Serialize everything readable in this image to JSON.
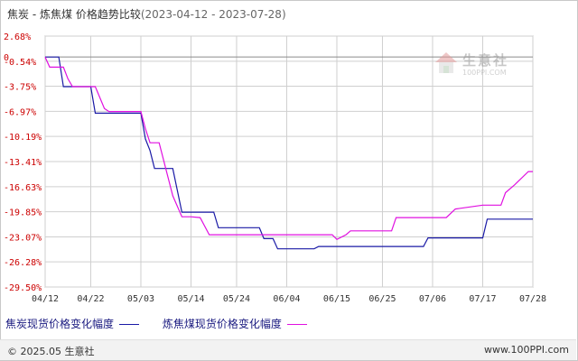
{
  "title": {
    "series_a": "焦炭",
    "sep": " - ",
    "series_b": "炼焦煤",
    "suffix": " 价格趋势比较",
    "range": "(2023-04-12 - 2023-07-28)"
  },
  "watermark": {
    "name": "生意社",
    "url": "100PPI.COM"
  },
  "footer": {
    "copyright": "© 2025.05 生意社",
    "site": "www.100PPI.com"
  },
  "colors": {
    "series_a": "#1a1aa6",
    "series_b": "#e010e0",
    "ytick": "#cc0000",
    "grid": "#cfcfcf"
  },
  "chart_data": {
    "type": "line",
    "title": "焦炭 - 炼焦煤 价格趋势比较(2023-04-12 - 2023-07-28)",
    "x_start": "2023-04-12",
    "x_end": "2023-07-28",
    "xlim": [
      "2023-04-12",
      "2023-07-28"
    ],
    "ylim": [
      -29.5,
      2.68
    ],
    "y_unit": "%",
    "y_ticks": [
      "2.68%",
      "0",
      "-0.54%",
      "-3.75%",
      "-6.97%",
      "-10.19%",
      "-13.41%",
      "-16.63%",
      "-19.85%",
      "-23.07%",
      "-26.28%",
      "-29.50%"
    ],
    "y_tick_values": [
      2.68,
      0,
      -0.54,
      -3.75,
      -6.97,
      -10.19,
      -13.41,
      -16.63,
      -19.85,
      -23.07,
      -26.28,
      -29.5
    ],
    "x_ticks": [
      "04/12",
      "04/22",
      "05/03",
      "05/14",
      "05/24",
      "06/04",
      "06/15",
      "06/25",
      "07/06",
      "07/17",
      "07/28"
    ],
    "x_tick_dates": [
      "2023-04-12",
      "2023-04-22",
      "2023-05-03",
      "2023-05-14",
      "2023-05-24",
      "2023-06-04",
      "2023-06-15",
      "2023-06-25",
      "2023-07-06",
      "2023-07-17",
      "2023-07-28"
    ],
    "grid": true,
    "legend_position": "bottom-left",
    "series": [
      {
        "name": "焦炭现货价格变化幅度",
        "color": "#1a1aa6",
        "points": [
          [
            "2023-04-12",
            0
          ],
          [
            "2023-04-15",
            0
          ],
          [
            "2023-04-16",
            -3.8
          ],
          [
            "2023-04-22",
            -3.8
          ],
          [
            "2023-04-23",
            -7.2
          ],
          [
            "2023-05-03",
            -7.2
          ],
          [
            "2023-05-04",
            -10.5
          ],
          [
            "2023-05-05",
            -12.0
          ],
          [
            "2023-05-06",
            -14.3
          ],
          [
            "2023-05-10",
            -14.3
          ],
          [
            "2023-05-12",
            -19.9
          ],
          [
            "2023-05-19",
            -19.9
          ],
          [
            "2023-05-20",
            -21.9
          ],
          [
            "2023-05-29",
            -21.9
          ],
          [
            "2023-05-30",
            -23.3
          ],
          [
            "2023-06-01",
            -23.3
          ],
          [
            "2023-06-02",
            -24.6
          ],
          [
            "2023-06-10",
            -24.6
          ],
          [
            "2023-06-11",
            -24.3
          ],
          [
            "2023-07-04",
            -24.3
          ],
          [
            "2023-07-05",
            -23.2
          ],
          [
            "2023-07-17",
            -23.2
          ],
          [
            "2023-07-18",
            -20.8
          ],
          [
            "2023-07-28",
            -20.8
          ]
        ]
      },
      {
        "name": "炼焦煤现货价格变化幅度",
        "color": "#e010e0",
        "points": [
          [
            "2023-04-12",
            0
          ],
          [
            "2023-04-13",
            -1.3
          ],
          [
            "2023-04-16",
            -1.3
          ],
          [
            "2023-04-17",
            -2.8
          ],
          [
            "2023-04-18",
            -3.8
          ],
          [
            "2023-04-23",
            -3.8
          ],
          [
            "2023-04-25",
            -6.6
          ],
          [
            "2023-04-26",
            -7.0
          ],
          [
            "2023-05-03",
            -7.0
          ],
          [
            "2023-05-04",
            -9.2
          ],
          [
            "2023-05-05",
            -11.0
          ],
          [
            "2023-05-07",
            -11.0
          ],
          [
            "2023-05-10",
            -17.8
          ],
          [
            "2023-05-12",
            -20.5
          ],
          [
            "2023-05-14",
            -20.5
          ],
          [
            "2023-05-16",
            -20.6
          ],
          [
            "2023-05-18",
            -22.8
          ],
          [
            "2023-06-14",
            -22.8
          ],
          [
            "2023-06-15",
            -23.4
          ],
          [
            "2023-06-17",
            -22.8
          ],
          [
            "2023-06-18",
            -22.3
          ],
          [
            "2023-06-27",
            -22.3
          ],
          [
            "2023-06-28",
            -20.6
          ],
          [
            "2023-07-09",
            -20.6
          ],
          [
            "2023-07-11",
            -19.5
          ],
          [
            "2023-07-17",
            -19.0
          ],
          [
            "2023-07-21",
            -19.0
          ],
          [
            "2023-07-22",
            -17.4
          ],
          [
            "2023-07-24",
            -16.4
          ],
          [
            "2023-07-27",
            -14.7
          ],
          [
            "2023-07-28",
            -14.7
          ]
        ]
      }
    ]
  }
}
